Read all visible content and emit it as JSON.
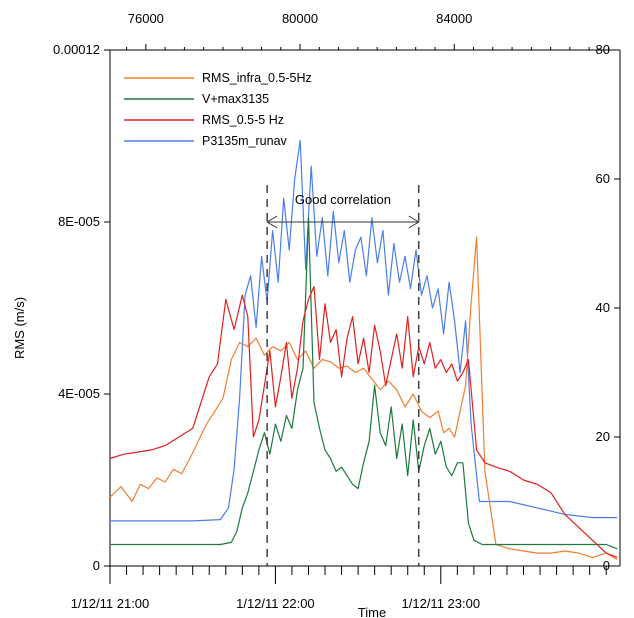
{
  "chart_data": {
    "type": "line",
    "xlabel": "Time",
    "ylabel": "RMS (m/s)",
    "left_axis": {
      "range": [
        0,
        0.00012
      ],
      "ticks": [
        0,
        4e-05,
        8e-05,
        0.00012
      ],
      "tick_labels": [
        "0",
        "4E-005",
        "8E-005",
        "0.00012"
      ]
    },
    "right_axis": {
      "range": [
        0,
        80
      ],
      "ticks": [
        0,
        20,
        40,
        60,
        80
      ],
      "tick_labels": [
        "0",
        "20",
        "40",
        "60",
        "80"
      ]
    },
    "top_axis": {
      "range": [
        75070,
        88300
      ],
      "ticks": [
        76000,
        80000,
        84000
      ],
      "tick_labels": [
        "76000",
        "80000",
        "84000"
      ]
    },
    "bottom_axis": {
      "unit": "minutes since 1/12/11 21:00",
      "range": [
        0,
        185
      ],
      "major_ticks": [
        0,
        60,
        120
      ],
      "tick_labels": [
        "1/12/11 21:00",
        "1/12/11 22:00",
        "1/12/11 23:00"
      ],
      "minor_tick_step": 6
    },
    "annotation": {
      "text": "Good correlation",
      "x_start": 57,
      "x_end": 112
    },
    "legend_position": "top-left",
    "grid": false,
    "series": [
      {
        "name": "RMS_infra_0.5-5Hz",
        "color": "#f07f30",
        "axis": "left",
        "x": [
          -1,
          4,
          8,
          11,
          14,
          17,
          20,
          23,
          26,
          29,
          32,
          35,
          38,
          41,
          44,
          47,
          50,
          53,
          56,
          59,
          62,
          65,
          68,
          71,
          74,
          77,
          80,
          83,
          86,
          89,
          92,
          95,
          98,
          101,
          104,
          107,
          110,
          113,
          116,
          119,
          121,
          123,
          125,
          127,
          129,
          131,
          133,
          136,
          140,
          145,
          150,
          155,
          160,
          165,
          170,
          175,
          180,
          184
        ],
        "y": [
          1.6e-05,
          1.85e-05,
          1.5e-05,
          1.9e-05,
          1.8e-05,
          2.05e-05,
          1.95e-05,
          2.25e-05,
          2.15e-05,
          2.5e-05,
          2.9e-05,
          3.3e-05,
          3.6e-05,
          3.9e-05,
          4.8e-05,
          5.2e-05,
          5.1e-05,
          5.3e-05,
          4.9e-05,
          5.1e-05,
          5e-05,
          5.2e-05,
          4.8e-05,
          5e-05,
          4.6e-05,
          4.8e-05,
          4.75e-05,
          4.6e-05,
          4.65e-05,
          4.5e-05,
          4.6e-05,
          4.35e-05,
          4.1e-05,
          4.3e-05,
          4.1e-05,
          3.7e-05,
          4e-05,
          3.6e-05,
          3.45e-05,
          3.6e-05,
          3.1e-05,
          3.2e-05,
          3e-05,
          3.6e-05,
          4.2e-05,
          6.1e-05,
          7.65e-05,
          2.2e-05,
          5e-06,
          4e-06,
          3.5e-06,
          3e-06,
          3e-06,
          3.5e-06,
          3e-06,
          2e-06,
          3e-06,
          1.5e-06
        ]
      },
      {
        "name": "V+max3135",
        "color": "#1c7a3e",
        "axis": "left",
        "x": [
          -1,
          10,
          20,
          30,
          40,
          44,
          46,
          48,
          50,
          52,
          54,
          56,
          58,
          60,
          62,
          64,
          66,
          68,
          70,
          72,
          74,
          76,
          78,
          80,
          82,
          84,
          86,
          88,
          90,
          92,
          94,
          96,
          98,
          100,
          102,
          104,
          106,
          108,
          110,
          112,
          114,
          116,
          118,
          120,
          122,
          124,
          126,
          128,
          130,
          132,
          135,
          140,
          150,
          160,
          170,
          180,
          184
        ],
        "y": [
          5e-06,
          5e-06,
          5e-06,
          5e-06,
          5e-06,
          5.5e-06,
          8e-06,
          1.35e-05,
          1.7e-05,
          2.2e-05,
          2.7e-05,
          3.1e-05,
          2.6e-05,
          3.3e-05,
          2.9e-05,
          3.5e-05,
          3.2e-05,
          4.1e-05,
          4.6e-05,
          8.1e-05,
          3.8e-05,
          3.2e-05,
          2.7e-05,
          2.5e-05,
          2.2e-05,
          2.3e-05,
          2.1e-05,
          1.9e-05,
          1.8e-05,
          2.4e-05,
          2.9e-05,
          4.2e-05,
          3.1e-05,
          2.8e-05,
          3.7e-05,
          2.5e-05,
          3.3e-05,
          2.1e-05,
          3.4e-05,
          2.2e-05,
          2.8e-05,
          3.2e-05,
          2.6e-05,
          2.9e-05,
          2.3e-05,
          2.1e-05,
          2.4e-05,
          2.4e-05,
          1e-05,
          6e-06,
          5e-06,
          5e-06,
          5e-06,
          5e-06,
          5e-06,
          5e-06,
          4e-06
        ]
      },
      {
        "name": "RMS_0.5-5 Hz",
        "color": "#e02020",
        "axis": "left",
        "x": [
          -1,
          5,
          10,
          15,
          20,
          25,
          30,
          33,
          36,
          39,
          42,
          45,
          48,
          50,
          52,
          54,
          56,
          58,
          60,
          62,
          64,
          66,
          68,
          70,
          72,
          74,
          76,
          78,
          80,
          82,
          84,
          86,
          88,
          90,
          92,
          94,
          96,
          98,
          100,
          102,
          104,
          106,
          108,
          110,
          112,
          114,
          116,
          118,
          120,
          122,
          124,
          126,
          128,
          130,
          133,
          136,
          140,
          145,
          150,
          155,
          160,
          165,
          170,
          175,
          180,
          184
        ],
        "y": [
          2.5e-05,
          2.6e-05,
          2.65e-05,
          2.7e-05,
          2.8e-05,
          3e-05,
          3.2e-05,
          3.8e-05,
          4.4e-05,
          4.7e-05,
          6.2e-05,
          5.5e-05,
          6.3e-05,
          5.8e-05,
          3e-05,
          3.4e-05,
          4.2e-05,
          5e-05,
          3.7e-05,
          4.4e-05,
          5.2e-05,
          3.9e-05,
          4.6e-05,
          5.7e-05,
          6.2e-05,
          6.5e-05,
          4.8e-05,
          6.1e-05,
          5.2e-05,
          5.5e-05,
          4.4e-05,
          5.3e-05,
          5.8e-05,
          4.7e-05,
          5.3e-05,
          4.5e-05,
          5.6e-05,
          5e-05,
          4.2e-05,
          4.8e-05,
          5.4e-05,
          4.6e-05,
          5.8e-05,
          4.4e-05,
          5.1e-05,
          4.7e-05,
          5.2e-05,
          4.6e-05,
          4.8e-05,
          4.5e-05,
          4.7e-05,
          4.3e-05,
          4.5e-05,
          4.8e-05,
          2.7e-05,
          2.4e-05,
          2.3e-05,
          2.2e-05,
          2e-05,
          1.9e-05,
          1.7e-05,
          1.2e-05,
          9e-06,
          6e-06,
          3e-06,
          2e-06
        ]
      },
      {
        "name": "P3135m_runav",
        "color": "#4a7ee8",
        "axis": "right",
        "x": [
          -1,
          10,
          20,
          30,
          40,
          43,
          45,
          47,
          49,
          51,
          53,
          55,
          57,
          59,
          61,
          63,
          65,
          67,
          69,
          71,
          73,
          75,
          77,
          79,
          81,
          83,
          85,
          87,
          89,
          91,
          93,
          95,
          97,
          99,
          101,
          103,
          105,
          107,
          109,
          111,
          113,
          115,
          117,
          119,
          121,
          123,
          125,
          127,
          129,
          131,
          134,
          138,
          145,
          155,
          165,
          175,
          184
        ],
        "y": [
          7,
          7,
          7,
          7,
          7.2,
          9,
          15,
          26,
          42,
          45,
          37,
          48,
          41,
          52,
          44,
          57,
          49,
          60,
          66,
          46,
          62,
          48,
          54,
          45,
          55,
          47,
          52,
          44,
          49,
          51,
          45,
          54,
          47,
          52,
          42,
          50,
          44,
          48,
          43,
          49,
          42,
          45,
          40,
          43,
          36,
          44,
          38,
          30,
          38,
          22,
          10,
          10,
          10,
          9,
          8,
          7.5,
          7.5
        ]
      }
    ]
  }
}
